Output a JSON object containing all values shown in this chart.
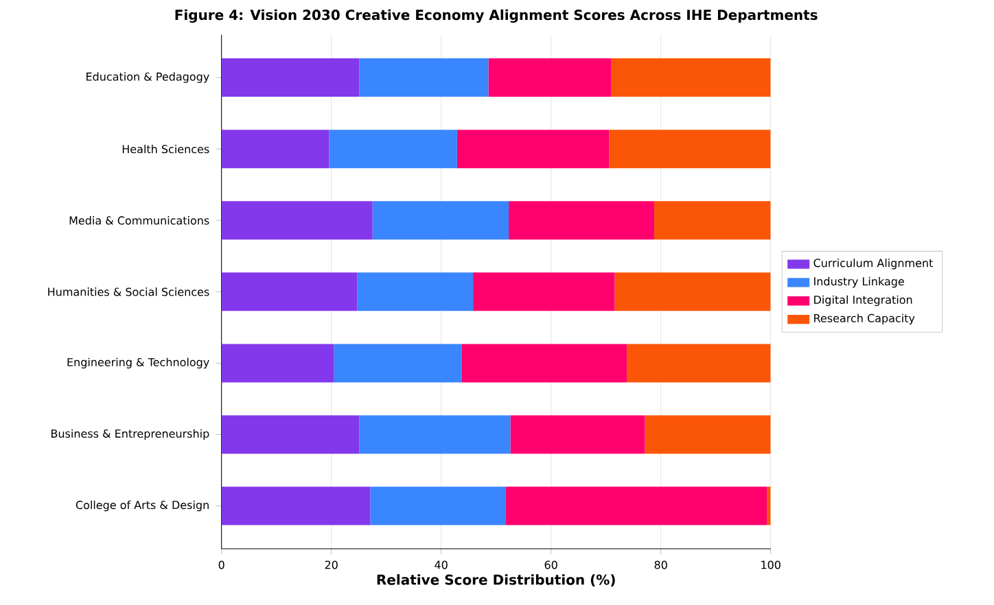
{
  "chart_data": {
    "type": "bar",
    "orientation": "horizontal",
    "stacked": true,
    "title": "Figure 4: Vision 2030 Creative Economy Alignment Scores Across IHE Departments",
    "xlabel": "Relative Score Distribution (%)",
    "categories": [
      "Education & Pedagogy",
      "Health Sciences",
      "Media & Communications",
      "Humanities & Social Sciences",
      "Engineering & Technology",
      "Business & Entrepreneurship",
      "College of Arts & Design"
    ],
    "series": [
      {
        "name": "Curriculum Alignment",
        "color": "#8338ec",
        "values": [
          25.1,
          19.6,
          27.5,
          24.7,
          20.5,
          25.1,
          27.1
        ]
      },
      {
        "name": "Industry Linkage",
        "color": "#3a86ff",
        "values": [
          23.5,
          23.3,
          24.8,
          21.1,
          23.2,
          27.5,
          24.6
        ]
      },
      {
        "name": "Digital Integration",
        "color": "#ff006e",
        "values": [
          22.4,
          27.7,
          26.5,
          25.8,
          30.1,
          24.5,
          47.6
        ]
      },
      {
        "name": "Research Capacity",
        "color": "#fb5607",
        "values": [
          29.0,
          29.4,
          21.2,
          28.4,
          26.2,
          22.9,
          0.7
        ]
      }
    ],
    "xlim": [
      0,
      100
    ],
    "xticks": [
      0,
      20,
      40,
      60,
      80,
      100
    ],
    "grid": "x",
    "legend": "right"
  }
}
